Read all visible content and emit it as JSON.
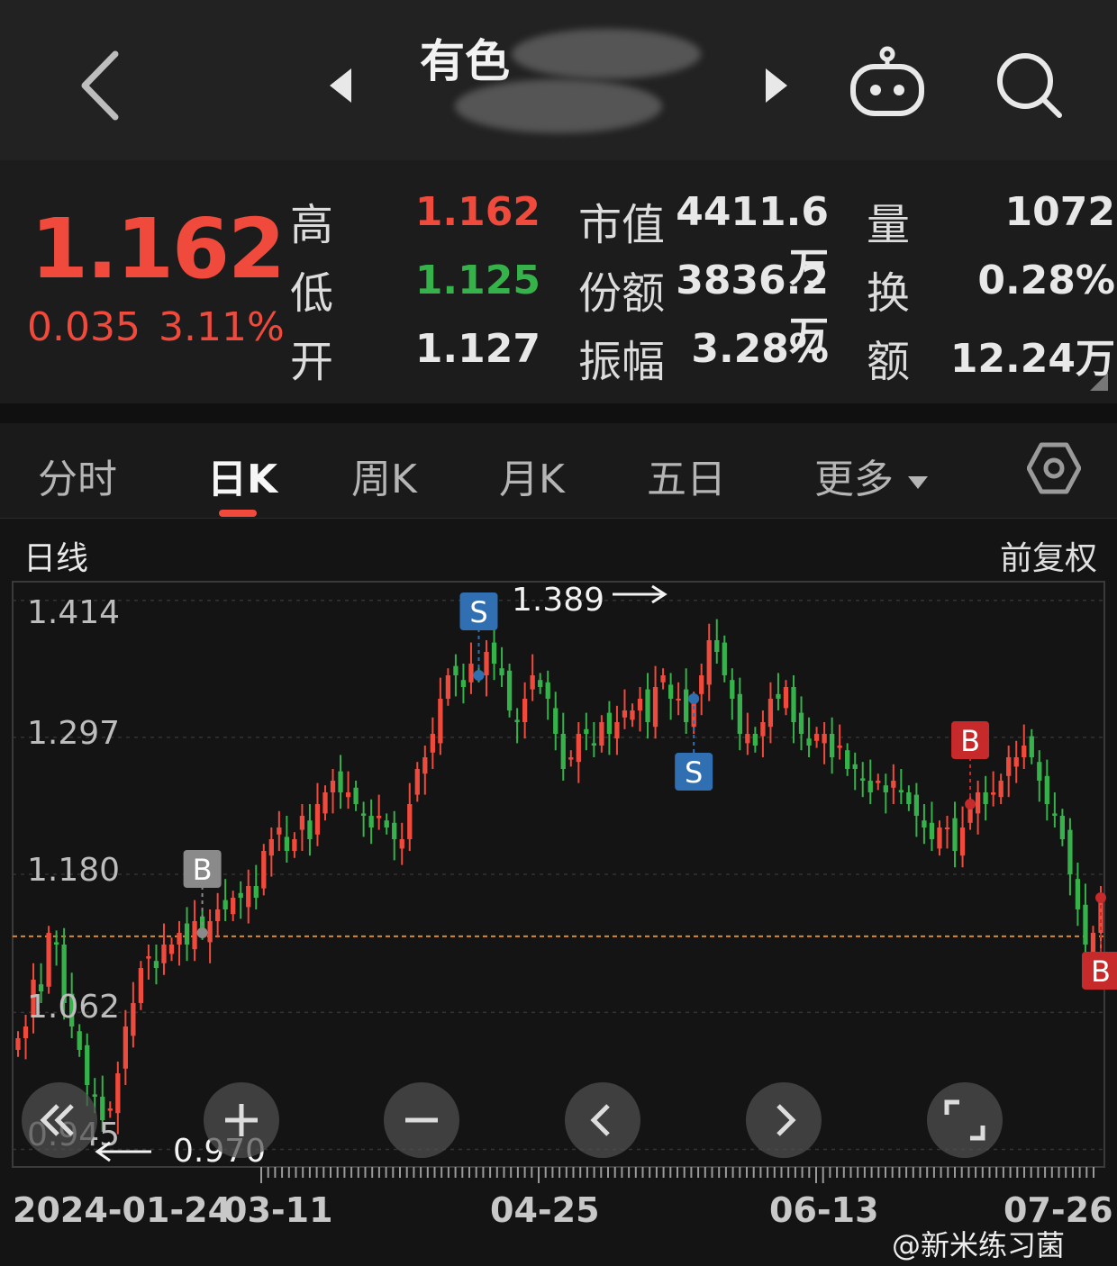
{
  "header": {
    "title": "有色",
    "back_icon": "chevron-left-icon",
    "prev_icon": "triangle-left-icon",
    "next_icon": "triangle-right-icon",
    "robot_icon": "robot-icon",
    "search_icon": "search-icon"
  },
  "quote": {
    "price": "1.162",
    "change": "0.035",
    "change_pct": "3.11%",
    "high_label": "高",
    "high": "1.162",
    "low_label": "低",
    "low": "1.125",
    "open_label": "开",
    "open": "1.127",
    "mktcap_label": "市值",
    "mktcap": "4411.6万",
    "shares_label": "份额",
    "shares": "3836.2万",
    "amplitude_label": "振幅",
    "amplitude": "3.28%",
    "volume_label": "量",
    "volume": "1072",
    "turnover_label": "换",
    "turnover": "0.28%",
    "amount_label": "额",
    "amount": "12.24万",
    "colors": {
      "up": "#f04a3c",
      "down": "#35b24a"
    }
  },
  "tabs": {
    "items": [
      "分时",
      "日K",
      "周K",
      "月K",
      "五日",
      "更多"
    ],
    "active": "日K",
    "settings_icon": "hexagon-settings-icon"
  },
  "chart": {
    "label": "日线",
    "adjust": "前复权",
    "y_ticks": [
      "1.414",
      "1.297",
      "1.180",
      "1.062",
      "0.945"
    ],
    "dates": [
      "2024-01-24",
      "03-11",
      "04-25",
      "06-13",
      "07-26"
    ],
    "max_label": "1.389",
    "min_label": "0.970",
    "signals": [
      "B",
      "S",
      "S",
      "B",
      "B"
    ],
    "controls": [
      "double-chevron-left-icon",
      "plus-icon",
      "minus-icon",
      "chevron-left-icon",
      "chevron-right-icon",
      "fullscreen-icon"
    ]
  },
  "chart_data": {
    "type": "candlestick",
    "title": "日线",
    "ylim": [
      0.93,
      1.43
    ],
    "y_ticks": [
      1.414,
      1.297,
      1.18,
      1.062,
      0.945
    ],
    "x_date_labels": [
      "2024-01-24",
      "03-11",
      "04-25",
      "06-13",
      "07-26"
    ],
    "period_high": 1.389,
    "period_low": 0.97,
    "reference_price": 1.127,
    "close_series": [
      1.04,
      1.05,
      1.09,
      1.08,
      1.13,
      1.12,
      1.07,
      1.05,
      1.03,
      1.0,
      0.99,
      0.97,
      0.98,
      1.01,
      1.05,
      1.07,
      1.1,
      1.11,
      1.1,
      1.12,
      1.12,
      1.13,
      1.12,
      1.14,
      1.13,
      1.14,
      1.15,
      1.15,
      1.16,
      1.16,
      1.17,
      1.16,
      1.2,
      1.21,
      1.22,
      1.2,
      1.21,
      1.23,
      1.21,
      1.24,
      1.25,
      1.26,
      1.25,
      1.25,
      1.24,
      1.23,
      1.22,
      1.23,
      1.22,
      1.21,
      1.21,
      1.24,
      1.27,
      1.28,
      1.3,
      1.33,
      1.35,
      1.35,
      1.34,
      1.36,
      1.35,
      1.37,
      1.36,
      1.35,
      1.32,
      1.31,
      1.33,
      1.35,
      1.34,
      1.33,
      1.3,
      1.27,
      1.28,
      1.3,
      1.3,
      1.29,
      1.31,
      1.3,
      1.31,
      1.32,
      1.32,
      1.33,
      1.31,
      1.34,
      1.35,
      1.33,
      1.33,
      1.31,
      1.33,
      1.35,
      1.38,
      1.37,
      1.35,
      1.33,
      1.3,
      1.3,
      1.29,
      1.31,
      1.33,
      1.33,
      1.34,
      1.31,
      1.3,
      1.29,
      1.3,
      1.3,
      1.28,
      1.29,
      1.27,
      1.27,
      1.26,
      1.25,
      1.26,
      1.25,
      1.26,
      1.25,
      1.24,
      1.23,
      1.22,
      1.21,
      1.22,
      1.22,
      1.2,
      1.22,
      1.24,
      1.25,
      1.24,
      1.25,
      1.26,
      1.28,
      1.28,
      1.29,
      1.28,
      1.26,
      1.24,
      1.23,
      1.21,
      1.18,
      1.15,
      1.12,
      1.13,
      1.16
    ]
  },
  "watermark": "@新米练习菌"
}
